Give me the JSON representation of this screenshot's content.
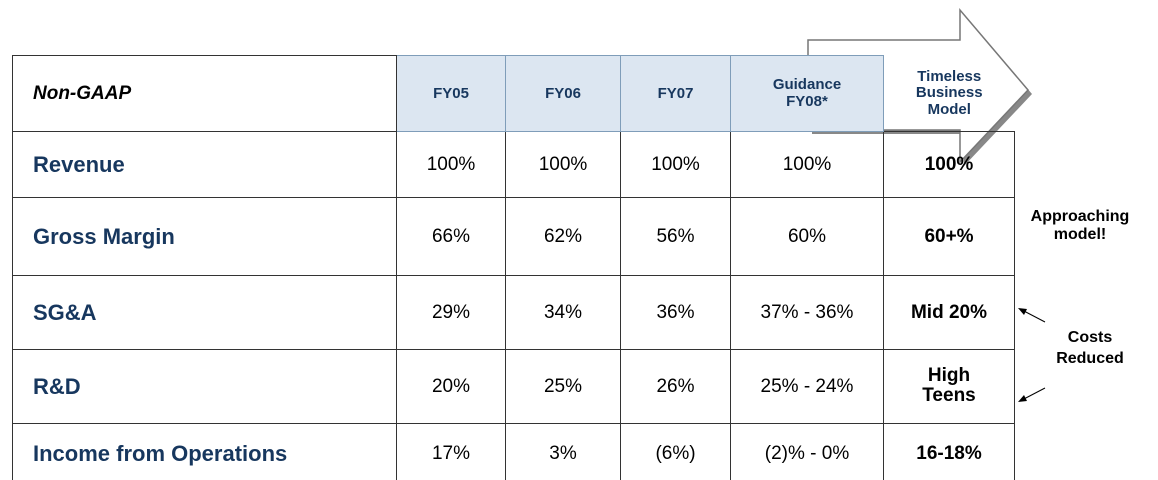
{
  "table": {
    "header": [
      "Non-GAAP",
      "FY05",
      "FY06",
      "FY07",
      "Guidance FY08*",
      "Timeless Business Model"
    ],
    "rows": [
      [
        "Revenue",
        "100%",
        "100%",
        "100%",
        "100%",
        "100%"
      ],
      [
        "Gross Margin",
        "66%",
        "62%",
        "56%",
        "60%",
        "60+%"
      ],
      [
        "SG&A",
        "29%",
        "34%",
        "36%",
        "37% - 36%",
        "Mid 20%"
      ],
      [
        "R&D",
        "20%",
        "25%",
        "26%",
        "25% - 24%",
        "High Teens"
      ],
      [
        "Income from Operations",
        "17%",
        "3%",
        "(6%)",
        "(2)% - 0%",
        "16-18%"
      ]
    ]
  },
  "notes": {
    "approaching": "Approaching model!",
    "costs": "Costs Reduced"
  }
}
